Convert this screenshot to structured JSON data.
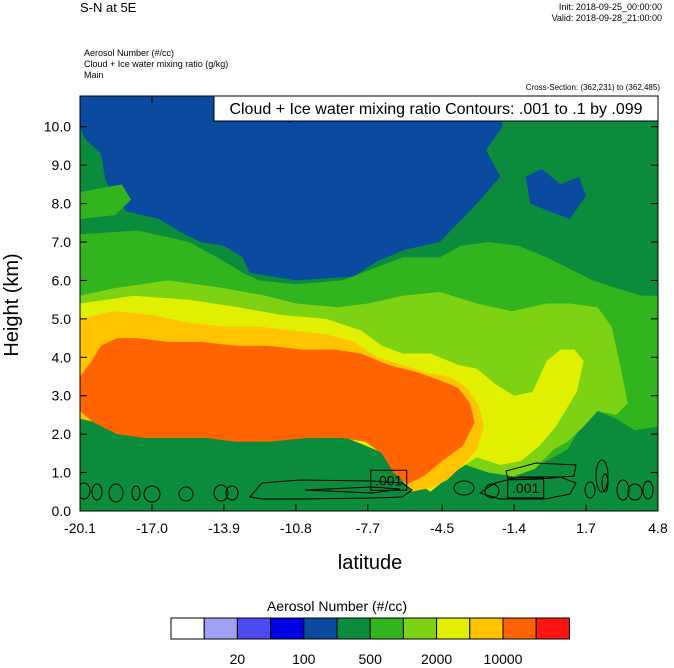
{
  "header": {
    "title": "S-N at 5E",
    "init": "Init: 2018-09-25_00:00:00",
    "valid": "Valid: 2018-09-28_21:00:00",
    "fields": [
      "Aerosol Number   (#/cc)",
      "Cloud + Ice water mixing ratio   (g/kg)",
      "Main"
    ],
    "cross_section": "Cross-Section: (362,231) to (362,485)"
  },
  "chart_data": {
    "type": "heatmap",
    "title": "",
    "xlabel": "latitude",
    "ylabel": "Height (km)",
    "xlim": [
      -20.1,
      4.8
    ],
    "ylim": [
      0.0,
      10.8
    ],
    "x_ticks": [
      "-20.1",
      "-17.0",
      "-13.9",
      "-10.8",
      "-7.7",
      "-4.5",
      "-1.4",
      "1.7",
      "4.8"
    ],
    "y_ticks": [
      "0.0",
      "1.0",
      "2.0",
      "3.0",
      "4.0",
      "5.0",
      "6.0",
      "7.0",
      "8.0",
      "9.0",
      "10.0"
    ],
    "contour_info": "Cloud + Ice water mixing ratio Contours: .001 to .1 by .099",
    "contour_labels": [
      {
        "text": ".001",
        "lat": -6.8,
        "height": 0.8
      },
      {
        "text": ".001",
        "lat": -0.9,
        "height": 0.6
      }
    ],
    "colorbar": {
      "title": "Aerosol Number  (#/cc)",
      "colors": [
        "#ffffff",
        "#a0a0f5",
        "#4b4bf0",
        "#0000e6",
        "#0a4ba0",
        "#0a8c3c",
        "#32b41e",
        "#7dd214",
        "#e1f000",
        "#ffc300",
        "#ff6400",
        "#ff1414"
      ],
      "labels": [
        {
          "text": "20",
          "after_index": 1
        },
        {
          "text": "100",
          "after_index": 3
        },
        {
          "text": "500",
          "after_index": 5
        },
        {
          "text": "2000",
          "after_index": 7
        },
        {
          "text": "10000",
          "after_index": 9
        }
      ]
    },
    "field_colors": {
      "bg": "#0a8c3c",
      "blue": "#0a4ba0",
      "brightblue": "#0000e6",
      "green": "#32b41e",
      "lightgreen": "#7dd214",
      "yellow": "#e1f000",
      "lightorange": "#ffc300",
      "orange": "#ff6400"
    },
    "field_regions": [
      {
        "color": "blue",
        "points": [
          [
            -20.1,
            10.8
          ],
          [
            -2.0,
            10.8
          ],
          [
            -1.9,
            10.0
          ],
          [
            -2.6,
            9.4
          ],
          [
            -2.0,
            8.7
          ],
          [
            -3.0,
            8.0
          ],
          [
            -3.8,
            7.5
          ],
          [
            -4.6,
            7.0
          ],
          [
            -6.1,
            6.8
          ],
          [
            -7.3,
            6.5
          ],
          [
            -8.3,
            6.1
          ],
          [
            -10.8,
            6.0
          ],
          [
            -12.8,
            6.2
          ],
          [
            -13.1,
            6.6
          ],
          [
            -13.9,
            6.9
          ],
          [
            -14.9,
            7.0
          ],
          [
            -15.6,
            7.2
          ],
          [
            -16.7,
            7.6
          ],
          [
            -18.1,
            7.8
          ],
          [
            -18.6,
            8.2
          ],
          [
            -19.0,
            8.6
          ],
          [
            -19.2,
            9.3
          ],
          [
            -19.9,
            9.7
          ],
          [
            -20.1,
            10.0
          ]
        ]
      },
      {
        "color": "brightblue",
        "points": [
          [
            -11.5,
            10.8
          ],
          [
            -9.8,
            10.8
          ],
          [
            -10.1,
            10.3
          ],
          [
            -11.1,
            10.1
          ]
        ]
      },
      {
        "color": "blue",
        "points": [
          [
            -0.9,
            8.7
          ],
          [
            -0.2,
            8.9
          ],
          [
            0.6,
            8.5
          ],
          [
            1.4,
            8.7
          ],
          [
            1.7,
            8.2
          ],
          [
            1.0,
            7.6
          ],
          [
            0.1,
            7.8
          ],
          [
            -0.7,
            8.0
          ]
        ]
      },
      {
        "color": "green",
        "points": [
          [
            -20.1,
            7.2
          ],
          [
            -17.6,
            7.3
          ],
          [
            -15.4,
            7.0
          ],
          [
            -13.9,
            6.5
          ],
          [
            -13.1,
            6.2
          ],
          [
            -12.4,
            6.0
          ],
          [
            -10.8,
            5.9
          ],
          [
            -8.8,
            6.0
          ],
          [
            -7.5,
            6.3
          ],
          [
            -6.2,
            6.6
          ],
          [
            -4.6,
            6.6
          ],
          [
            -3.7,
            6.9
          ],
          [
            -2.5,
            7.0
          ],
          [
            -1.2,
            6.9
          ],
          [
            0.0,
            6.6
          ],
          [
            1.0,
            6.3
          ],
          [
            2.0,
            6.0
          ],
          [
            3.0,
            5.8
          ],
          [
            4.1,
            5.6
          ],
          [
            4.8,
            5.6
          ],
          [
            4.8,
            2.2
          ],
          [
            3.8,
            2.1
          ],
          [
            3.0,
            2.4
          ],
          [
            2.2,
            2.6
          ],
          [
            1.6,
            2.3
          ],
          [
            0.9,
            1.6
          ],
          [
            0.0,
            1.3
          ],
          [
            -1.0,
            1.0
          ],
          [
            -2.5,
            1.1
          ],
          [
            -4.0,
            1.5
          ],
          [
            -5.0,
            1.2
          ],
          [
            -6.0,
            1.3
          ],
          [
            -7.6,
            3.0
          ],
          [
            -10.8,
            5.0
          ],
          [
            -15.0,
            5.4
          ],
          [
            -20.1,
            5.5
          ]
        ]
      },
      {
        "color": "green",
        "points": [
          [
            -20.1,
            8.3
          ],
          [
            -18.3,
            8.5
          ],
          [
            -17.9,
            8.1
          ],
          [
            -18.6,
            7.7
          ],
          [
            -20.1,
            7.6
          ]
        ]
      },
      {
        "color": "lightgreen",
        "points": [
          [
            -20.1,
            5.6
          ],
          [
            -18.6,
            5.8
          ],
          [
            -16.3,
            6.0
          ],
          [
            -13.9,
            5.8
          ],
          [
            -12.1,
            5.6
          ],
          [
            -10.8,
            5.4
          ],
          [
            -9.0,
            5.3
          ],
          [
            -7.7,
            5.4
          ],
          [
            -6.2,
            5.6
          ],
          [
            -4.6,
            5.7
          ],
          [
            -3.0,
            5.4
          ],
          [
            -1.5,
            5.2
          ],
          [
            0.0,
            5.4
          ],
          [
            1.0,
            5.4
          ],
          [
            2.2,
            5.3
          ],
          [
            2.8,
            4.8
          ],
          [
            3.2,
            3.7
          ],
          [
            3.5,
            2.8
          ],
          [
            3.0,
            2.5
          ],
          [
            2.2,
            2.6
          ],
          [
            1.6,
            2.2
          ],
          [
            0.9,
            1.8
          ],
          [
            0.3,
            1.6
          ],
          [
            -0.5,
            1.1
          ],
          [
            -1.4,
            0.9
          ],
          [
            -2.5,
            1.0
          ],
          [
            -3.5,
            1.2
          ],
          [
            -4.6,
            1.0
          ],
          [
            -5.5,
            1.0
          ],
          [
            -7.0,
            2.0
          ],
          [
            -9.0,
            3.5
          ],
          [
            -12.0,
            5.0
          ],
          [
            -15.0,
            5.2
          ],
          [
            -20.1,
            5.3
          ]
        ]
      },
      {
        "color": "yellow",
        "points": [
          [
            -20.1,
            5.4
          ],
          [
            -17.8,
            5.6
          ],
          [
            -15.4,
            5.5
          ],
          [
            -13.3,
            5.3
          ],
          [
            -11.4,
            5.1
          ],
          [
            -9.5,
            5.0
          ],
          [
            -8.0,
            4.7
          ],
          [
            -7.1,
            4.3
          ],
          [
            -6.2,
            4.1
          ],
          [
            -5.0,
            4.1
          ],
          [
            -3.8,
            3.8
          ],
          [
            -3.0,
            3.7
          ],
          [
            -2.2,
            3.3
          ],
          [
            -1.4,
            3.0
          ],
          [
            -0.6,
            3.1
          ],
          [
            0.0,
            3.9
          ],
          [
            0.6,
            4.2
          ],
          [
            1.2,
            4.2
          ],
          [
            1.6,
            3.9
          ],
          [
            1.3,
            3.1
          ],
          [
            0.4,
            2.2
          ],
          [
            -0.3,
            1.7
          ],
          [
            -1.1,
            1.3
          ],
          [
            -2.0,
            1.2
          ],
          [
            -3.0,
            1.4
          ],
          [
            -4.0,
            1.0
          ],
          [
            -5.0,
            0.5
          ],
          [
            -6.0,
            0.9
          ],
          [
            -7.0,
            1.5
          ],
          [
            -9.0,
            2.0
          ],
          [
            -20.1,
            2.5
          ]
        ]
      },
      {
        "color": "lightorange",
        "points": [
          [
            -20.1,
            5.0
          ],
          [
            -18.6,
            5.2
          ],
          [
            -17.0,
            5.1
          ],
          [
            -15.4,
            4.9
          ],
          [
            -13.9,
            4.8
          ],
          [
            -12.4,
            4.8
          ],
          [
            -11.0,
            4.7
          ],
          [
            -9.5,
            4.6
          ],
          [
            -8.3,
            4.4
          ],
          [
            -7.3,
            4.0
          ],
          [
            -6.2,
            3.8
          ],
          [
            -5.2,
            3.6
          ],
          [
            -4.2,
            3.5
          ],
          [
            -3.4,
            3.2
          ],
          [
            -2.9,
            2.7
          ],
          [
            -2.7,
            2.2
          ],
          [
            -3.0,
            1.6
          ],
          [
            -3.6,
            1.2
          ],
          [
            -4.3,
            0.8
          ],
          [
            -5.0,
            0.6
          ],
          [
            -5.8,
            0.5
          ],
          [
            -6.5,
            1.0
          ],
          [
            -7.3,
            1.7
          ],
          [
            -8.0,
            2.0
          ],
          [
            -9.5,
            2.0
          ],
          [
            -11.5,
            2.0
          ],
          [
            -13.9,
            1.9
          ],
          [
            -17.0,
            2.0
          ],
          [
            -18.6,
            2.2
          ],
          [
            -20.1,
            2.4
          ]
        ]
      },
      {
        "color": "orange",
        "points": [
          [
            -20.1,
            3.5
          ],
          [
            -19.6,
            3.9
          ],
          [
            -19.2,
            4.3
          ],
          [
            -18.5,
            4.5
          ],
          [
            -17.6,
            4.5
          ],
          [
            -16.3,
            4.4
          ],
          [
            -14.9,
            4.4
          ],
          [
            -13.4,
            4.3
          ],
          [
            -12.0,
            4.3
          ],
          [
            -10.5,
            4.2
          ],
          [
            -9.1,
            4.2
          ],
          [
            -8.0,
            4.1
          ],
          [
            -6.8,
            3.8
          ],
          [
            -5.5,
            3.6
          ],
          [
            -4.6,
            3.4
          ],
          [
            -3.8,
            3.2
          ],
          [
            -3.3,
            2.8
          ],
          [
            -3.1,
            2.3
          ],
          [
            -3.6,
            1.7
          ],
          [
            -4.5,
            1.3
          ],
          [
            -5.3,
            0.9
          ],
          [
            -6.0,
            0.7
          ],
          [
            -6.6,
            1.0
          ],
          [
            -7.1,
            1.5
          ],
          [
            -7.8,
            1.8
          ],
          [
            -8.8,
            1.9
          ],
          [
            -10.3,
            1.9
          ],
          [
            -12.0,
            1.8
          ],
          [
            -13.4,
            1.8
          ],
          [
            -14.6,
            1.9
          ],
          [
            -16.0,
            1.9
          ],
          [
            -17.3,
            1.9
          ],
          [
            -18.5,
            2.0
          ],
          [
            -19.5,
            2.3
          ],
          [
            -20.1,
            2.6
          ]
        ]
      }
    ]
  }
}
